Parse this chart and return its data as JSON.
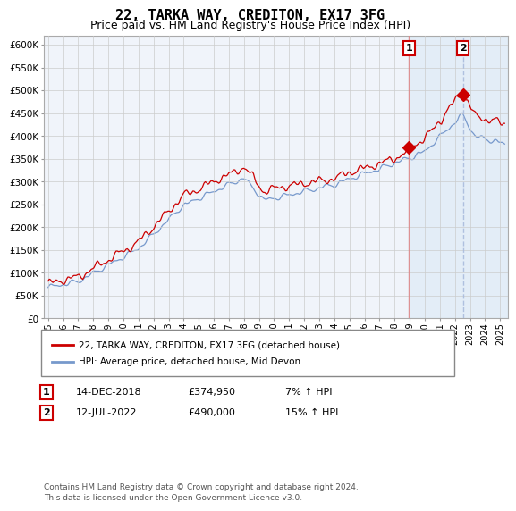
{
  "title": "22, TARKA WAY, CREDITON, EX17 3FG",
  "subtitle": "Price paid vs. HM Land Registry's House Price Index (HPI)",
  "ylim": [
    0,
    620000
  ],
  "yticks": [
    0,
    50000,
    100000,
    150000,
    200000,
    250000,
    300000,
    350000,
    400000,
    450000,
    500000,
    550000,
    600000
  ],
  "xlim_start": 1994.7,
  "xlim_end": 2025.5,
  "line1_color": "#cc0000",
  "line2_color": "#7799cc",
  "shade_color": "#d8e8f5",
  "marker_color": "#cc0000",
  "vline1_color": "#dd8888",
  "vline2_color": "#aabbdd",
  "background_color": "#ffffff",
  "grid_color": "#cccccc",
  "chart_bg": "#f0f4fa",
  "legend_label1": "22, TARKA WAY, CREDITON, EX17 3FG (detached house)",
  "legend_label2": "HPI: Average price, detached house, Mid Devon",
  "annotation1_date": "14-DEC-2018",
  "annotation1_price": "£374,950",
  "annotation1_hpi": "7% ↑ HPI",
  "annotation2_date": "12-JUL-2022",
  "annotation2_price": "£490,000",
  "annotation2_hpi": "15% ↑ HPI",
  "footer": "Contains HM Land Registry data © Crown copyright and database right 2024.\nThis data is licensed under the Open Government Licence v3.0.",
  "sale1_x": 2018.95,
  "sale1_y": 374950,
  "sale2_x": 2022.53,
  "sale2_y": 490000
}
